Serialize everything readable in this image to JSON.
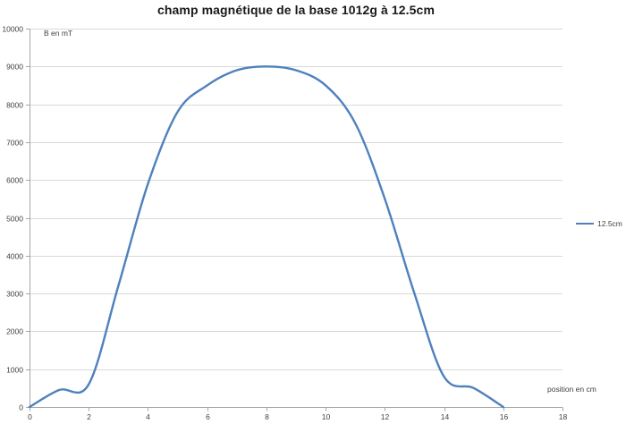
{
  "chart_data": {
    "type": "line",
    "title": "champ magnétique de la base 1012g à 12.5cm",
    "xlabel": "position en cm",
    "ylabel": "B en mT",
    "xlim": [
      0,
      18
    ],
    "ylim": [
      0,
      10000
    ],
    "x_tick_step": 2,
    "y_tick_step": 1000,
    "grid": "horizontal",
    "legend_position": "right",
    "line_style": "smooth",
    "series": [
      {
        "name": "12.5cm",
        "color": "#4F81BD",
        "x": [
          0,
          1,
          2,
          3,
          4,
          5,
          6,
          7,
          8,
          9,
          10,
          11,
          12,
          13,
          14,
          15,
          16
        ],
        "values": [
          0,
          450,
          600,
          3200,
          5900,
          7800,
          8500,
          8900,
          9000,
          8900,
          8500,
          7500,
          5500,
          3000,
          800,
          500,
          0
        ]
      }
    ]
  },
  "colors": {
    "series": "#4F81BD",
    "gridline": "#d9d9d9",
    "axis_line": "#a6a6a6",
    "tick_text": "#3f3f3f",
    "title_text": "#1a1a1a"
  }
}
